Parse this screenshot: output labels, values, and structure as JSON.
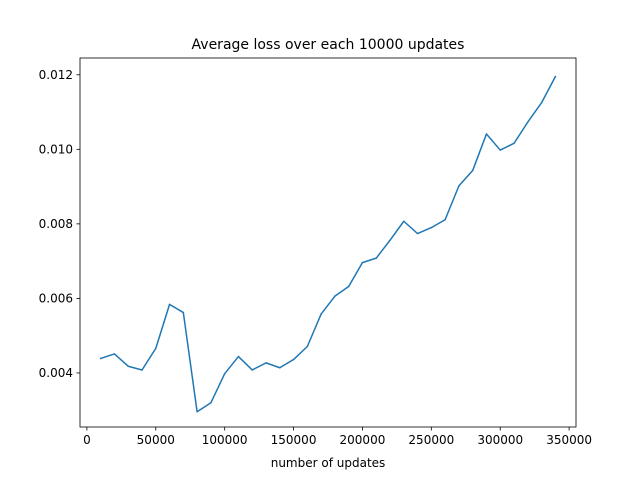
{
  "chart_data": {
    "type": "line",
    "title": "Average loss over each 10000 updates",
    "xlabel": "number of updates",
    "ylabel": "",
    "xlim": [
      -5000,
      355000
    ],
    "ylim": [
      0.00255,
      0.01245
    ],
    "xticks": [
      0,
      50000,
      100000,
      150000,
      200000,
      250000,
      300000,
      350000
    ],
    "yticks": [
      0.004,
      0.006,
      0.008,
      0.01,
      0.012
    ],
    "xtick_labels": [
      "0",
      "50000",
      "100000",
      "150000",
      "200000",
      "250000",
      "300000",
      "350000"
    ],
    "ytick_labels": [
      "0.004",
      "0.006",
      "0.008",
      "0.010",
      "0.012"
    ],
    "grid": false,
    "series": [
      {
        "color": "#1f77b4",
        "x": [
          10000,
          20000,
          30000,
          40000,
          50000,
          60000,
          70000,
          80000,
          90000,
          100000,
          110000,
          120000,
          130000,
          140000,
          150000,
          160000,
          170000,
          180000,
          190000,
          200000,
          210000,
          220000,
          230000,
          240000,
          250000,
          260000,
          270000,
          280000,
          290000,
          300000,
          310000,
          320000,
          330000,
          340000
        ],
        "y": [
          0.00439,
          0.00451,
          0.00418,
          0.00408,
          0.00466,
          0.00584,
          0.00562,
          0.00296,
          0.0032,
          0.00398,
          0.00444,
          0.00408,
          0.00427,
          0.00414,
          0.00436,
          0.00471,
          0.00558,
          0.00606,
          0.00632,
          0.00696,
          0.00708,
          0.00756,
          0.00807,
          0.00774,
          0.0079,
          0.00811,
          0.00902,
          0.00943,
          0.01041,
          0.00998,
          0.01016,
          0.01073,
          0.01125,
          0.01195
        ]
      }
    ]
  }
}
